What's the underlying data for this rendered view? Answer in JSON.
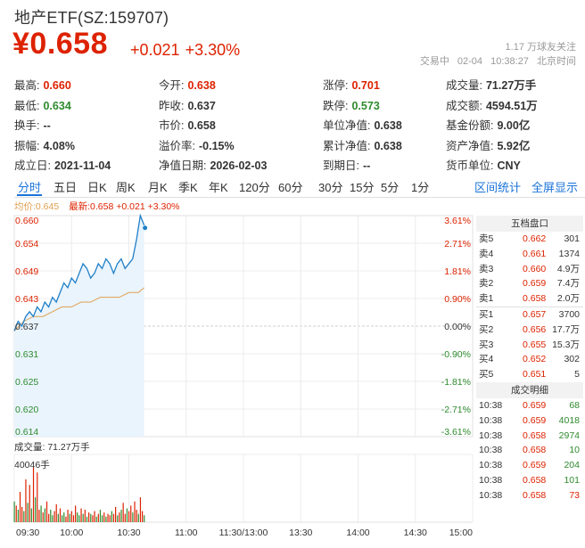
{
  "header": {
    "title": "地产ETF(SZ:159707)",
    "price": "¥0.658",
    "change_abs": "+0.021",
    "change_pct": "+3.30%",
    "followers": "1.17 万球友关注",
    "status": "交易中",
    "date": "02-04",
    "time": "10:38:27",
    "tz": "北京时间"
  },
  "quote": {
    "rows": [
      [
        {
          "label": "最高:",
          "value": "0.660",
          "tone": "up"
        },
        {
          "label": "今开:",
          "value": "0.638",
          "tone": "up"
        },
        {
          "label": "涨停:",
          "value": "0.701",
          "tone": "up"
        },
        {
          "label": "成交量:",
          "value": "71.27万手",
          "tone": ""
        }
      ],
      [
        {
          "label": "最低:",
          "value": "0.634",
          "tone": "down"
        },
        {
          "label": "昨收:",
          "value": "0.637",
          "tone": ""
        },
        {
          "label": "跌停:",
          "value": "0.573",
          "tone": "down"
        },
        {
          "label": "成交额:",
          "value": "4594.51万",
          "tone": ""
        }
      ],
      [
        {
          "label": "换手:",
          "value": "--",
          "tone": ""
        },
        {
          "label": "市价:",
          "value": "0.658",
          "tone": ""
        },
        {
          "label": "单位净值:",
          "value": "0.638",
          "tone": ""
        },
        {
          "label": "基金份额:",
          "value": "9.00亿",
          "tone": ""
        }
      ],
      [
        {
          "label": "振幅:",
          "value": "4.08%",
          "tone": ""
        },
        {
          "label": "溢价率:",
          "value": "-0.15%",
          "tone": ""
        },
        {
          "label": "累计净值:",
          "value": "0.638",
          "tone": ""
        },
        {
          "label": "资产净值:",
          "value": "5.92亿",
          "tone": ""
        }
      ],
      [
        {
          "label": "成立日:",
          "value": "2021-11-04",
          "tone": ""
        },
        {
          "label": "净值日期:",
          "value": "2026-02-03",
          "tone": ""
        },
        {
          "label": "到期日:",
          "value": "--",
          "tone": ""
        },
        {
          "label": "货币单位:",
          "value": "CNY",
          "tone": ""
        }
      ]
    ]
  },
  "tabs": {
    "periods": [
      "分时",
      "五日",
      "日K",
      "周K",
      "月K",
      "季K",
      "年K",
      "120分",
      "60分",
      "30分",
      "15分",
      "5分",
      "1分"
    ],
    "active": "分时",
    "right": [
      "区间统计",
      "全屏显示"
    ]
  },
  "legend": {
    "avg_label": "均价:",
    "avg_value": "0.645",
    "last_label": "最新:",
    "last_value": "0.658",
    "last_change": "+0.021",
    "last_pct": "+3.30%"
  },
  "volume": {
    "title": "成交量: 71.27万手",
    "max_label": "40046手"
  },
  "chart_data": {
    "type": "line",
    "prev_close": 0.637,
    "ylim": [
      0.614,
      0.66
    ],
    "y_ticks": [
      "0.660",
      "0.654",
      "0.649",
      "0.643",
      "0.637",
      "0.631",
      "0.625",
      "0.620",
      "0.614"
    ],
    "pct_ticks": [
      "3.61%",
      "2.71%",
      "1.81%",
      "0.90%",
      "0.00%",
      "-0.90%",
      "-1.81%",
      "-2.71%",
      "-3.61%"
    ],
    "x_ticks": [
      "09:30",
      "10:00",
      "10:30",
      "11:00",
      "11:30/13:00",
      "13:30",
      "14:00",
      "14:30",
      "15:00"
    ],
    "total_minutes": 240,
    "price_x": [
      0,
      2,
      4,
      6,
      8,
      10,
      12,
      14,
      16,
      18,
      20,
      22,
      24,
      26,
      28,
      30,
      32,
      34,
      36,
      38,
      40,
      42,
      44,
      46,
      48,
      50,
      52,
      54,
      56,
      58,
      60,
      62,
      64,
      66,
      68
    ],
    "price": [
      0.636,
      0.638,
      0.637,
      0.639,
      0.64,
      0.639,
      0.641,
      0.64,
      0.642,
      0.641,
      0.643,
      0.642,
      0.644,
      0.646,
      0.645,
      0.647,
      0.646,
      0.648,
      0.65,
      0.649,
      0.647,
      0.648,
      0.65,
      0.649,
      0.651,
      0.65,
      0.648,
      0.65,
      0.651,
      0.649,
      0.65,
      0.651,
      0.655,
      0.66,
      0.658
    ],
    "avg_x": [
      0,
      5,
      10,
      15,
      20,
      25,
      30,
      35,
      40,
      45,
      50,
      55,
      60,
      65,
      68
    ],
    "avg": [
      0.636,
      0.638,
      0.639,
      0.639,
      0.64,
      0.641,
      0.641,
      0.642,
      0.642,
      0.643,
      0.643,
      0.643,
      0.644,
      0.644,
      0.645
    ],
    "volume_x": [
      0,
      1,
      2,
      3,
      4,
      5,
      6,
      7,
      8,
      9,
      10,
      11,
      12,
      13,
      14,
      15,
      16,
      17,
      18,
      19,
      20,
      21,
      22,
      23,
      24,
      25,
      26,
      27,
      28,
      29,
      30,
      31,
      32,
      33,
      34,
      35,
      36,
      37,
      38,
      39,
      40,
      41,
      42,
      43,
      44,
      45,
      46,
      47,
      48,
      49,
      50,
      51,
      52,
      53,
      54,
      55,
      56,
      57,
      58,
      59,
      60,
      61,
      62,
      63,
      64,
      65,
      66,
      67,
      68
    ],
    "volume": [
      15000,
      12000,
      9000,
      22000,
      11000,
      8000,
      31000,
      14000,
      27000,
      10000,
      40046,
      18000,
      36000,
      9000,
      12000,
      7000,
      10000,
      15000,
      6000,
      9000,
      5000,
      8000,
      13000,
      6000,
      10000,
      5000,
      7000,
      4000,
      9000,
      6000,
      8000,
      5000,
      12000,
      7000,
      5000,
      10000,
      6000,
      9000,
      4000,
      7000,
      6000,
      5000,
      8000,
      4000,
      6000,
      9000,
      5000,
      7000,
      4000,
      6000,
      5000,
      8000,
      6000,
      11000,
      5000,
      7000,
      9000,
      14000,
      6000,
      10000,
      8000,
      12000,
      7000,
      15000,
      9000,
      6000,
      18000,
      8000,
      5000
    ],
    "volume_up": [
      0,
      1,
      0,
      1,
      1,
      0,
      1,
      0,
      1,
      0,
      1,
      0,
      1,
      1,
      0,
      1,
      0,
      1,
      1,
      0,
      0,
      1,
      1,
      0,
      1,
      0,
      0,
      1,
      1,
      0,
      1,
      1,
      1,
      0,
      0,
      1,
      0,
      1,
      0,
      1,
      0,
      1,
      1,
      0,
      1,
      0,
      0,
      1,
      0,
      1,
      1,
      0,
      1,
      1,
      0,
      1,
      0,
      1,
      1,
      0,
      1,
      1,
      0,
      1,
      1,
      0,
      1,
      1,
      0
    ],
    "grid": true
  },
  "orderbook": {
    "title": "五档盘口",
    "asks": [
      {
        "label": "卖5",
        "price": "0.662",
        "vol": "301"
      },
      {
        "label": "卖4",
        "price": "0.661",
        "vol": "1374"
      },
      {
        "label": "卖3",
        "price": "0.660",
        "vol": "4.9万"
      },
      {
        "label": "卖2",
        "price": "0.659",
        "vol": "7.4万"
      },
      {
        "label": "卖1",
        "price": "0.658",
        "vol": "2.0万"
      }
    ],
    "bids": [
      {
        "label": "买1",
        "price": "0.657",
        "vol": "3700"
      },
      {
        "label": "买2",
        "price": "0.656",
        "vol": "17.7万"
      },
      {
        "label": "买3",
        "price": "0.655",
        "vol": "15.3万"
      },
      {
        "label": "买4",
        "price": "0.652",
        "vol": "302"
      },
      {
        "label": "买5",
        "price": "0.651",
        "vol": "5"
      }
    ],
    "trades_title": "成交明细",
    "trades": [
      {
        "time": "10:38",
        "price": "0.659",
        "vol": "68",
        "dir": "down"
      },
      {
        "time": "10:38",
        "price": "0.659",
        "vol": "4018",
        "dir": "down"
      },
      {
        "time": "10:38",
        "price": "0.658",
        "vol": "2974",
        "dir": "down"
      },
      {
        "time": "10:38",
        "price": "0.658",
        "vol": "10",
        "dir": "down"
      },
      {
        "time": "10:38",
        "price": "0.659",
        "vol": "204",
        "dir": "down"
      },
      {
        "time": "10:38",
        "price": "0.658",
        "vol": "101",
        "dir": "down"
      },
      {
        "time": "10:38",
        "price": "0.658",
        "vol": "73",
        "dir": "up"
      }
    ]
  },
  "colors": {
    "up": "#dd2200",
    "down": "#2e8b2e",
    "line": "#1f7fc8",
    "avg": "#e0a050",
    "fill": "#eaf4fd",
    "accent": "#1a73d9"
  }
}
